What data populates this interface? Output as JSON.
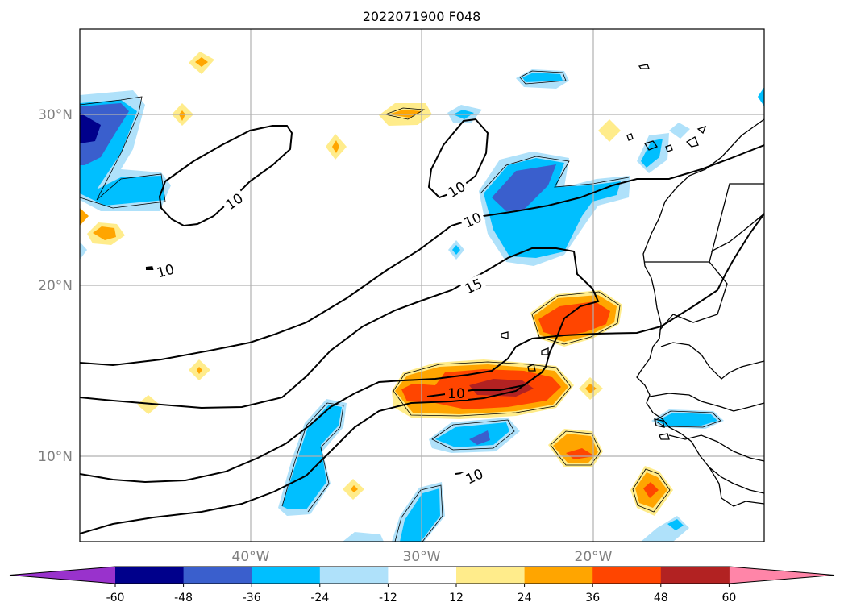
{
  "title": "2022071900 F048",
  "latitude_labels": [
    "30°N",
    "20°N",
    "10°N"
  ],
  "longitude_labels": [
    "40°W",
    "30°W",
    "20°W"
  ],
  "contour_labels": [
    "10",
    "10",
    "10",
    "15",
    "10",
    "10"
  ],
  "colorbar": {
    "tick_labels": [
      "-60",
      "-48",
      "-36",
      "-24",
      "-12",
      "12",
      "24",
      "36",
      "48",
      "60"
    ],
    "colors": [
      "#9932cc",
      "#00008b",
      "#3a5fcd",
      "#00bfff",
      "#afe1fa",
      "#ffffff",
      "#ffec8b",
      "#ffa500",
      "#ff4500",
      "#b22222",
      "#ff85a8"
    ]
  },
  "colors": {
    "dark_blue": "#00008b",
    "medium_blue": "#3a5fcd",
    "cyan": "#00bfff",
    "light_blue": "#afe1fa",
    "light_yellow": "#ffec8b",
    "orange": "#ffa500",
    "red_orange": "#ff4500",
    "dark_red": "#b22222"
  }
}
